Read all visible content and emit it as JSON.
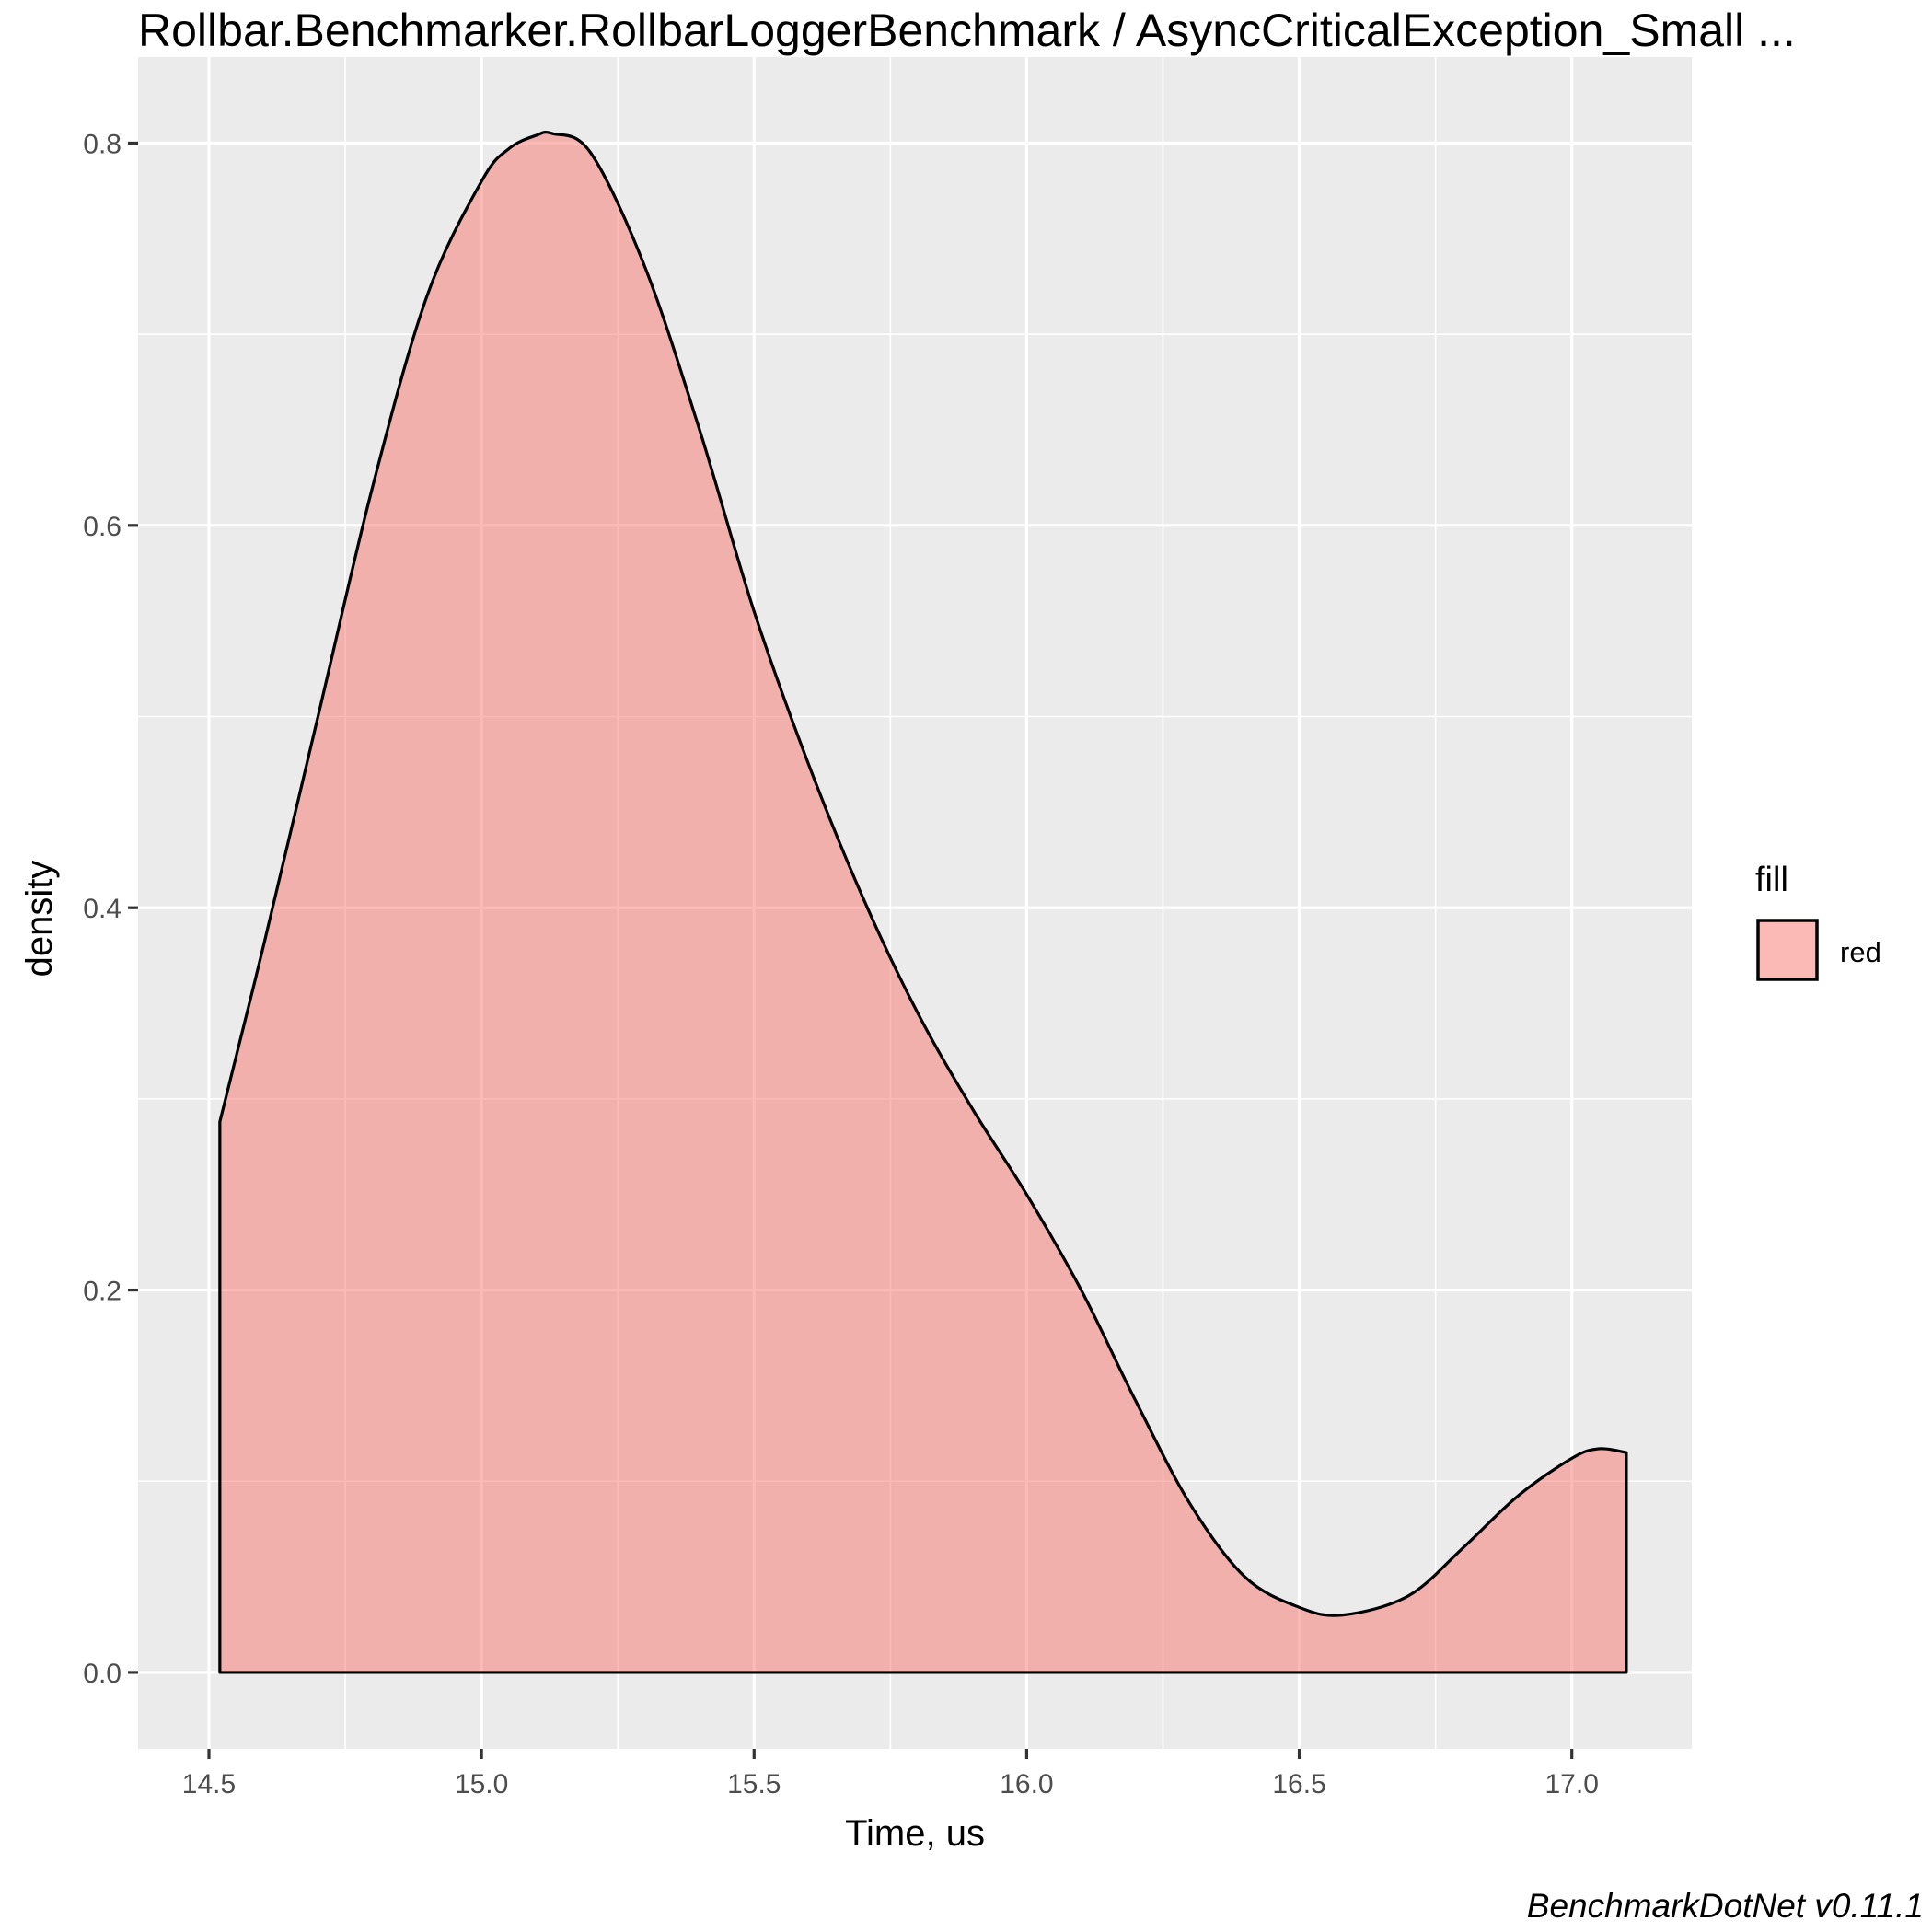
{
  "chart_data": {
    "type": "area",
    "title": "Rollbar.Benchmarker.RollbarLoggerBenchmark / AsyncCriticalException_Small ...",
    "xlabel": "Time, us",
    "ylabel": "density",
    "xlim": [
      14.37,
      17.22
    ],
    "ylim": [
      -0.04,
      0.845
    ],
    "x_ticks": [
      14.5,
      15.0,
      15.5,
      16.0,
      16.5,
      17.0
    ],
    "x_tick_labels": [
      "14.5",
      "15.0",
      "15.5",
      "16.0",
      "16.5",
      "17.0"
    ],
    "y_ticks": [
      0.0,
      0.2,
      0.4,
      0.6,
      0.8
    ],
    "y_tick_labels": [
      "0.0",
      "0.2",
      "0.4",
      "0.6",
      "0.8"
    ],
    "grid": true,
    "legend": {
      "title": "fill",
      "entries": [
        "red"
      ],
      "position": "right"
    },
    "caption": "BenchmarkDotNet v0.11.1",
    "series": [
      {
        "name": "red",
        "fill_color": "#F8766D",
        "fill_opacity": 0.5,
        "x": [
          14.52,
          14.6,
          14.7,
          14.8,
          14.9,
          15.0,
          15.05,
          15.1,
          15.13,
          15.2,
          15.3,
          15.4,
          15.5,
          15.6,
          15.7,
          15.8,
          15.9,
          16.0,
          16.1,
          16.2,
          16.3,
          16.4,
          16.5,
          16.58,
          16.7,
          16.8,
          16.9,
          17.0,
          17.05,
          17.1
        ],
        "y": [
          0.288,
          0.38,
          0.5,
          0.62,
          0.72,
          0.78,
          0.797,
          0.804,
          0.805,
          0.795,
          0.735,
          0.65,
          0.555,
          0.475,
          0.405,
          0.345,
          0.295,
          0.25,
          0.2,
          0.142,
          0.088,
          0.05,
          0.034,
          0.03,
          0.04,
          0.065,
          0.092,
          0.112,
          0.117,
          0.115
        ]
      }
    ]
  }
}
